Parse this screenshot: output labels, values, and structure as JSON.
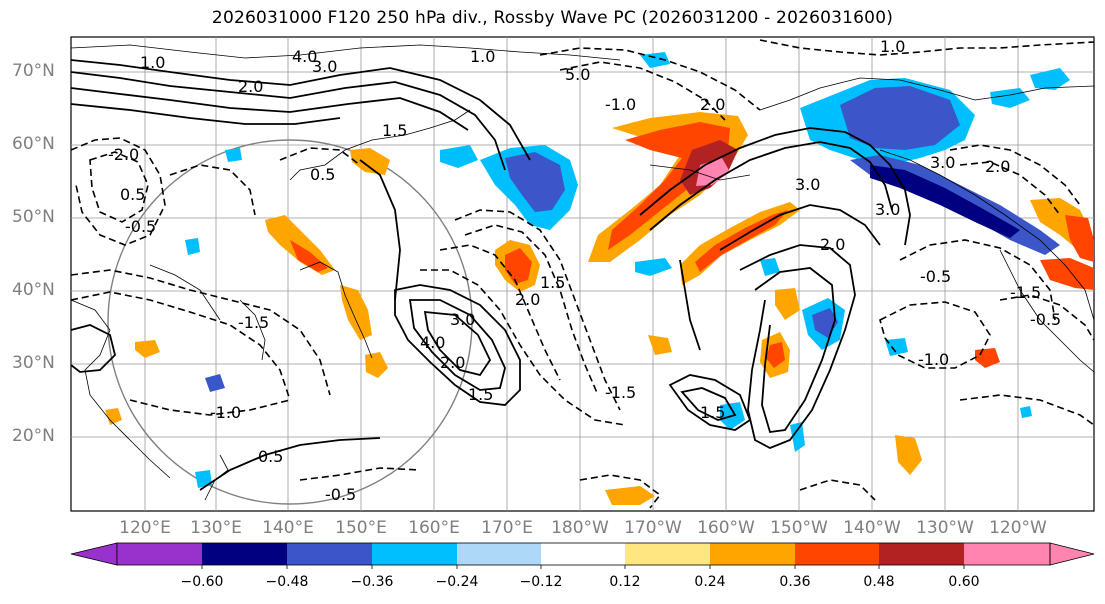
{
  "title": "2026031000 F120 250 hPa div., Rossby Wave PC (2026031200 - 2026031600)",
  "lat_labels": [
    "70°N",
    "60°N",
    "50°N",
    "40°N",
    "30°N",
    "20°N"
  ],
  "lon_labels": [
    "120°E",
    "130°E",
    "140°E",
    "150°E",
    "160°E",
    "170°E",
    "180°W",
    "170°W",
    "160°W",
    "150°W",
    "140°W",
    "130°W",
    "120°W"
  ],
  "colorbar": {
    "ticks": [
      "−0.60",
      "−0.48",
      "−0.36",
      "−0.24",
      "−0.12",
      "0.12",
      "0.24",
      "0.36",
      "0.48",
      "0.60"
    ],
    "colors": [
      "#9932cc",
      "#000080",
      "#3a56c8",
      "#00bfff",
      "#add8f8",
      "#ffffff",
      "#ffe680",
      "#ffa500",
      "#ff4500",
      "#b22222",
      "#ff85b0"
    ]
  },
  "contour_labels": [
    {
      "text": "1.0"
    },
    {
      "text": "3.0"
    },
    {
      "text": "5.0"
    },
    {
      "text": "2.0"
    },
    {
      "text": "4.0"
    },
    {
      "text": "1.5"
    },
    {
      "text": "0.5"
    },
    {
      "text": "-0.5"
    },
    {
      "text": "-1.0"
    },
    {
      "text": "-1.5"
    },
    {
      "text": "-2.0"
    },
    {
      "text": "3.0"
    },
    {
      "text": "2.0"
    },
    {
      "text": "1.0"
    },
    {
      "text": "1.5"
    },
    {
      "text": "0.5"
    },
    {
      "text": "-0.5"
    },
    {
      "text": "-1.0"
    },
    {
      "text": "2.0"
    },
    {
      "text": "3.0"
    },
    {
      "text": "-1.5"
    },
    {
      "text": "-0.5"
    },
    {
      "text": "0.5"
    },
    {
      "text": "2.0"
    },
    {
      "text": "3.0"
    },
    {
      "text": "4.0"
    },
    {
      "text": "1.5"
    },
    {
      "text": "-0.5"
    },
    {
      "text": "1.0"
    },
    {
      "text": "2.0"
    },
    {
      "text": "3.0"
    },
    {
      "text": "-1.0"
    },
    {
      "text": "-1.5"
    },
    {
      "text": "1.5"
    },
    {
      "text": "2.0"
    }
  ],
  "legend_pos": "bottom"
}
